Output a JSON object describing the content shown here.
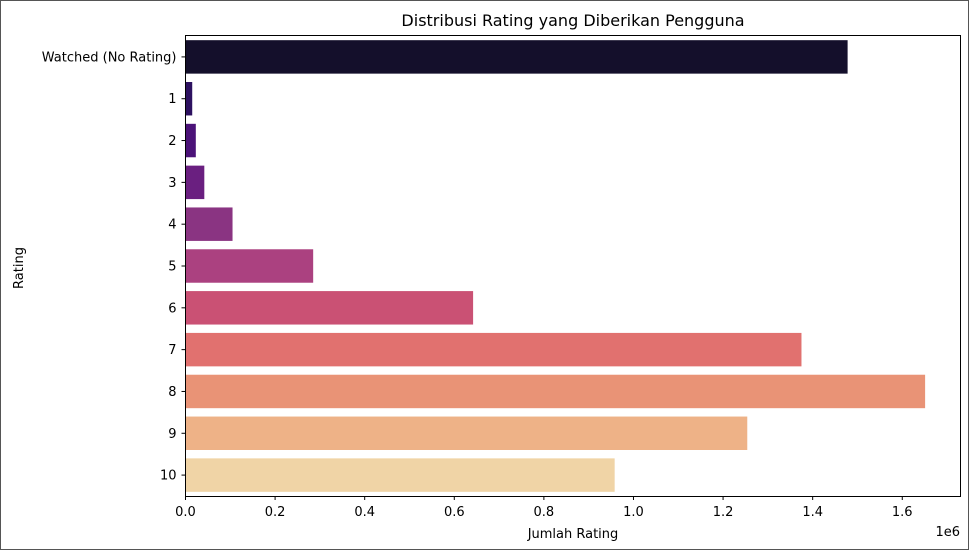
{
  "chart_data": {
    "type": "bar",
    "orientation": "horizontal",
    "title": "Distribusi Rating yang Diberikan Pengguna",
    "xlabel": "Jumlah Rating",
    "ylabel": "Rating",
    "x_offset_label": "1e6",
    "xlim": [
      0,
      1.73
    ],
    "x_ticks": [
      0.0,
      0.2,
      0.4,
      0.6,
      0.8,
      1.0,
      1.2,
      1.4,
      1.6
    ],
    "x_tick_labels": [
      "0.0",
      "0.2",
      "0.4",
      "0.6",
      "0.8",
      "1.0",
      "1.2",
      "1.4",
      "1.6"
    ],
    "categories": [
      "Watched (No Rating)",
      "1",
      "2",
      "3",
      "4",
      "5",
      "6",
      "7",
      "8",
      "9",
      "10"
    ],
    "values": [
      1.478,
      0.015,
      0.023,
      0.042,
      0.105,
      0.285,
      0.642,
      1.375,
      1.651,
      1.254,
      0.958
    ],
    "colors": [
      "#140F2B",
      "#2D1160",
      "#4B1278",
      "#6A1F80",
      "#8A3482",
      "#AB4180",
      "#CA5174",
      "#E1716F",
      "#E99376",
      "#EEB287",
      "#F0D4A6"
    ],
    "grid": false
  }
}
